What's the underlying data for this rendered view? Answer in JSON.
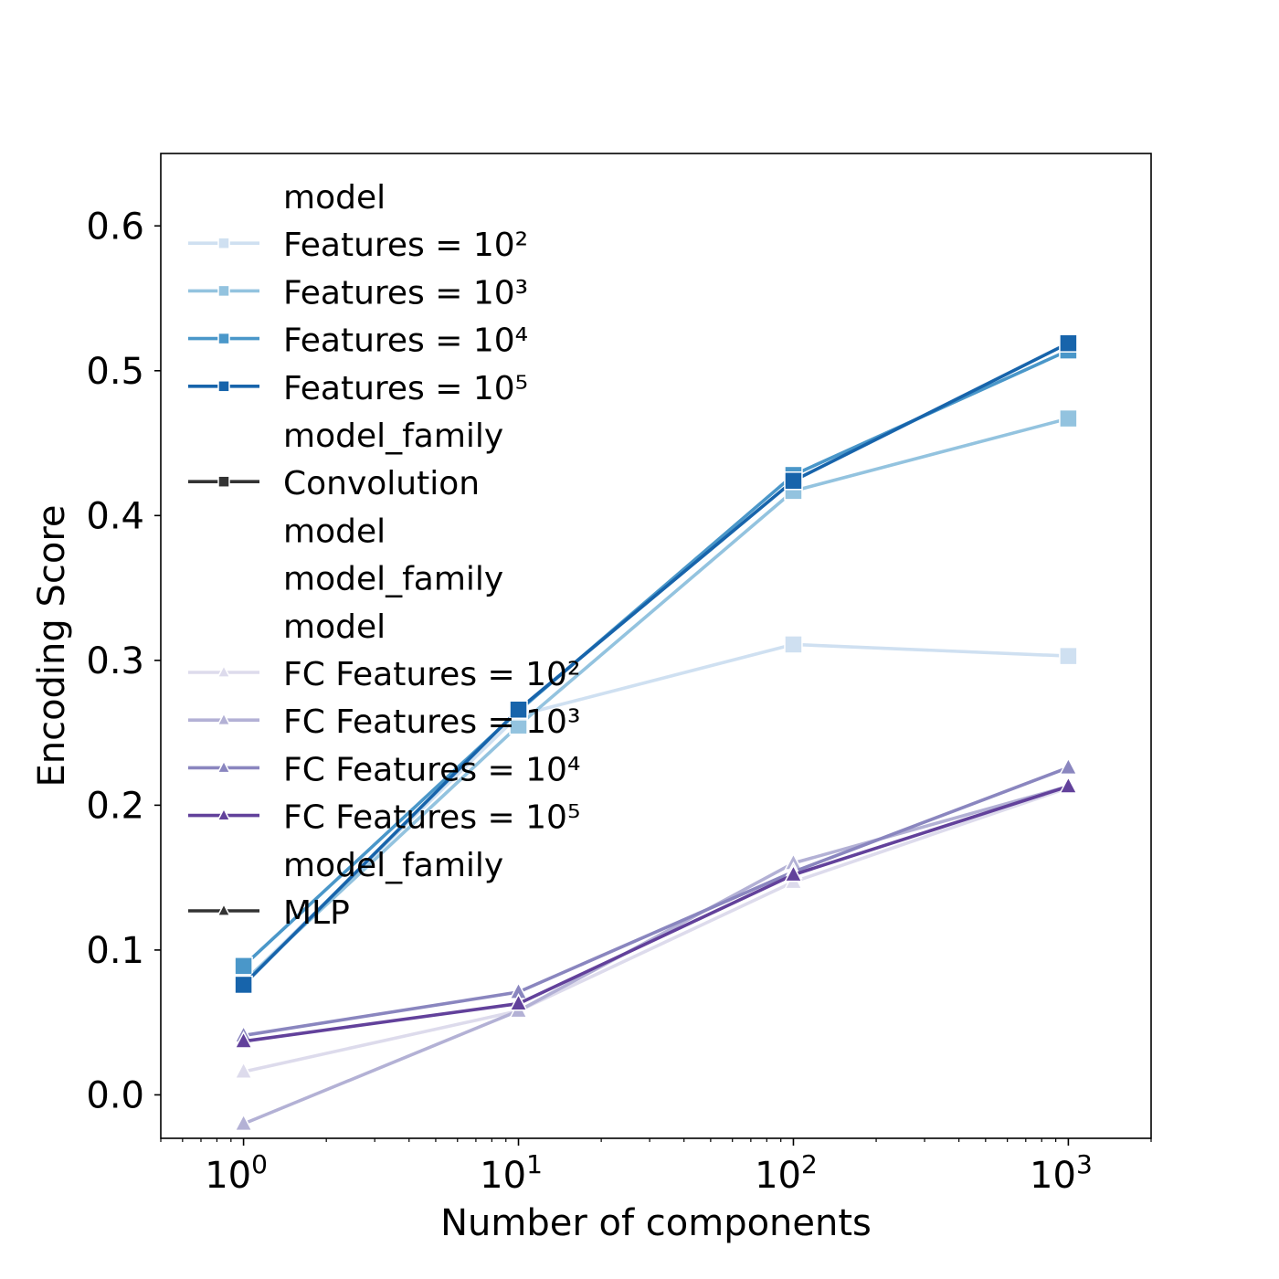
{
  "chart_data": {
    "type": "line",
    "xlabel": "Number of components",
    "ylabel": "Encoding Score",
    "xscale": "log",
    "xlim": [
      0.5,
      2000
    ],
    "ylim": [
      -0.03,
      0.65
    ],
    "grid": false,
    "legend_position": "upper-left",
    "x": [
      1,
      10,
      100,
      1000
    ],
    "x_ticks": [
      {
        "value": 1,
        "base": "10",
        "exp": "0"
      },
      {
        "value": 10,
        "base": "10",
        "exp": "1"
      },
      {
        "value": 100,
        "base": "10",
        "exp": "2"
      },
      {
        "value": 1000,
        "base": "10",
        "exp": "3"
      }
    ],
    "y_ticks": [
      {
        "value": 0.0,
        "label": "0.0"
      },
      {
        "value": 0.1,
        "label": "0.1"
      },
      {
        "value": 0.2,
        "label": "0.2"
      },
      {
        "value": 0.3,
        "label": "0.3"
      },
      {
        "value": 0.4,
        "label": "0.4"
      },
      {
        "value": 0.5,
        "label": "0.5"
      },
      {
        "value": 0.6,
        "label": "0.6"
      }
    ],
    "series": [
      {
        "name": "Features = 10²",
        "family": "Convolution",
        "marker": "square",
        "color": "#cfe0f1",
        "values": [
          0.078,
          0.262,
          0.311,
          0.303
        ]
      },
      {
        "name": "Features = 10³",
        "family": "Convolution",
        "marker": "square",
        "color": "#93c3df",
        "values": [
          0.078,
          0.255,
          0.417,
          0.467
        ]
      },
      {
        "name": "Features = 10⁴",
        "family": "Convolution",
        "marker": "square",
        "color": "#4a97c9",
        "values": [
          0.089,
          0.265,
          0.428,
          0.514
        ]
      },
      {
        "name": "Features = 10⁵",
        "family": "Convolution",
        "marker": "square",
        "color": "#1764ab",
        "values": [
          0.076,
          0.266,
          0.424,
          0.519
        ]
      },
      {
        "name": "FC Features = 10²",
        "family": "MLP",
        "marker": "triangle",
        "color": "#dddbec",
        "values": [
          0.016,
          0.058,
          0.147,
          0.212
        ]
      },
      {
        "name": "FC Features = 10³",
        "family": "MLP",
        "marker": "triangle",
        "color": "#b3b1d5",
        "values": [
          -0.02,
          0.058,
          0.16,
          0.213
        ]
      },
      {
        "name": "FC Features = 10⁴",
        "family": "MLP",
        "marker": "triangle",
        "color": "#8a86bf",
        "values": [
          0.041,
          0.071,
          0.154,
          0.226
        ]
      },
      {
        "name": "FC Features = 10⁵",
        "family": "MLP",
        "marker": "triangle",
        "color": "#62419b",
        "values": [
          0.037,
          0.063,
          0.152,
          0.213
        ]
      }
    ],
    "legend": [
      {
        "label": "model",
        "kind": "header"
      },
      {
        "label": "Features = 10²",
        "kind": "entry",
        "color": "#cfe0f1",
        "marker": "square"
      },
      {
        "label": "Features = 10³",
        "kind": "entry",
        "color": "#93c3df",
        "marker": "square"
      },
      {
        "label": "Features = 10⁴",
        "kind": "entry",
        "color": "#4a97c9",
        "marker": "square"
      },
      {
        "label": "Features = 10⁵",
        "kind": "entry",
        "color": "#1764ab",
        "marker": "square"
      },
      {
        "label": "model_family",
        "kind": "header"
      },
      {
        "label": "Convolution",
        "kind": "entry",
        "color": "#333333",
        "marker": "square"
      },
      {
        "label": "model",
        "kind": "header"
      },
      {
        "label": "model_family",
        "kind": "header"
      },
      {
        "label": "model",
        "kind": "header"
      },
      {
        "label": "FC Features = 10²",
        "kind": "entry",
        "color": "#dddbec",
        "marker": "triangle"
      },
      {
        "label": "FC Features = 10³",
        "kind": "entry",
        "color": "#b3b1d5",
        "marker": "triangle"
      },
      {
        "label": "FC Features = 10⁴",
        "kind": "entry",
        "color": "#8a86bf",
        "marker": "triangle"
      },
      {
        "label": "FC Features = 10⁵",
        "kind": "entry",
        "color": "#62419b",
        "marker": "triangle"
      },
      {
        "label": "model_family",
        "kind": "header"
      },
      {
        "label": "MLP",
        "kind": "entry",
        "color": "#333333",
        "marker": "triangle"
      }
    ]
  }
}
